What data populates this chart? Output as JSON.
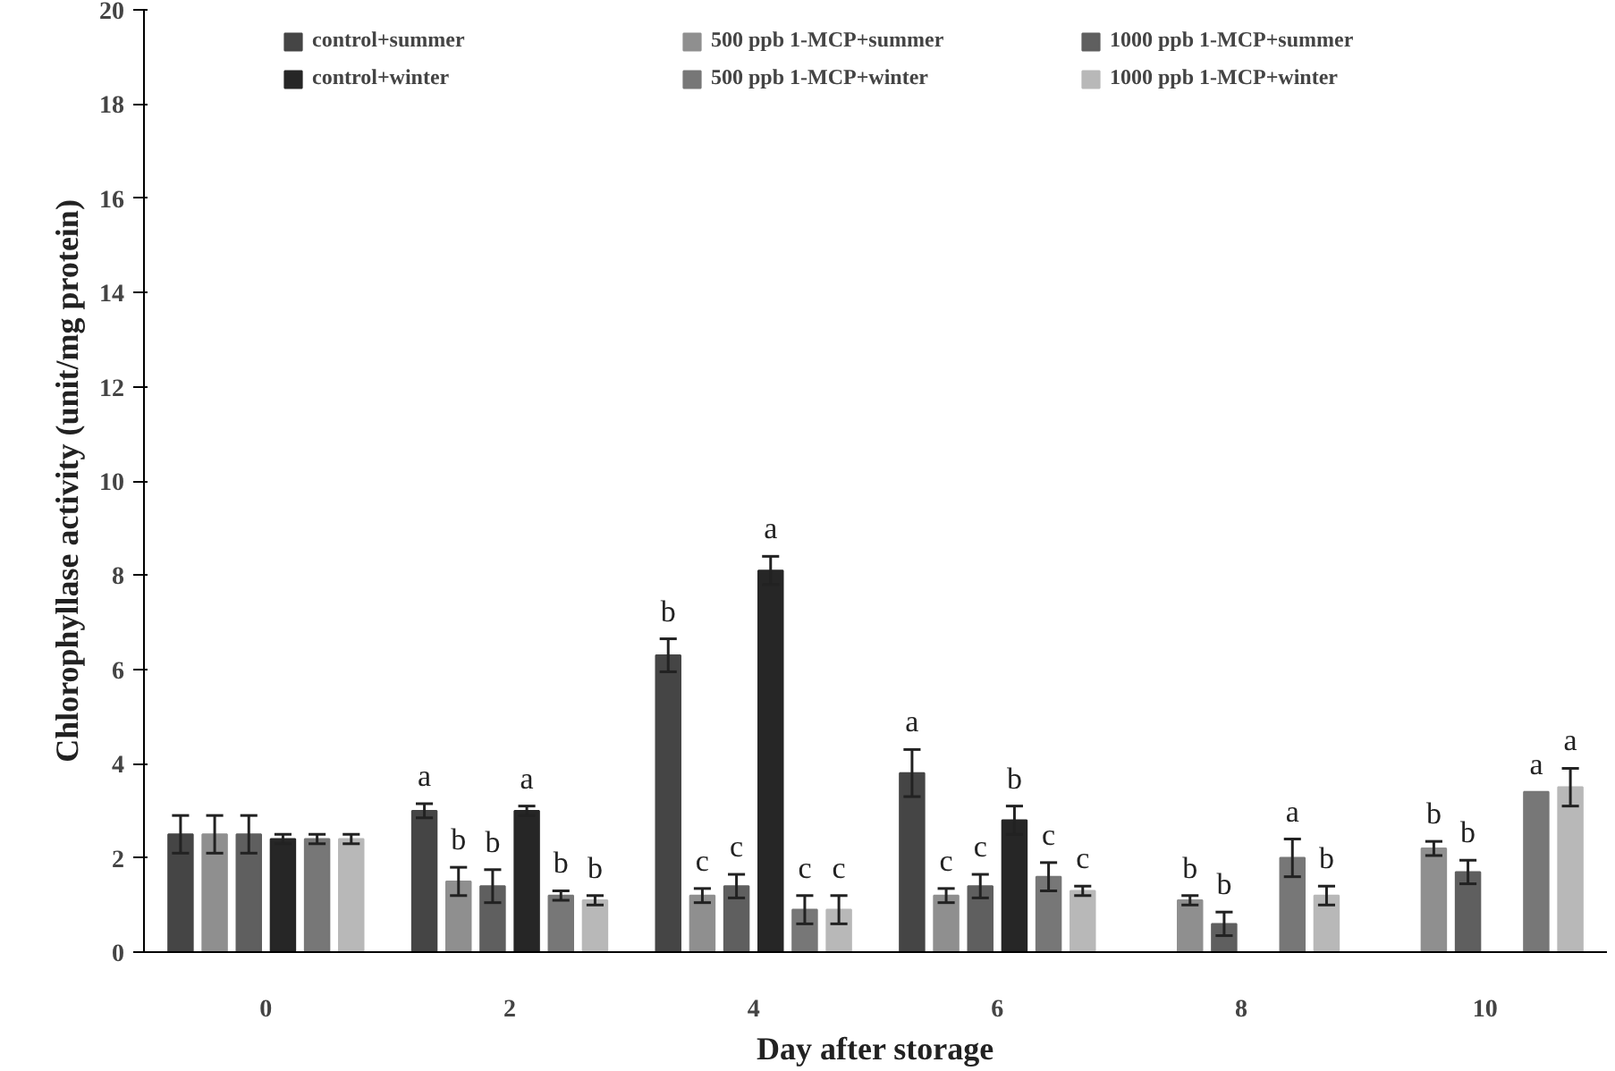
{
  "chart_data": {
    "type": "bar",
    "xlabel": "Day after storage",
    "ylabel": "Chlorophyllase activity (unit/mg protein)",
    "categories": [
      "0",
      "2",
      "4",
      "6",
      "8",
      "10"
    ],
    "ylim": [
      0,
      20
    ],
    "yticks": [
      0,
      2,
      4,
      6,
      8,
      10,
      12,
      14,
      16,
      18,
      20
    ],
    "grid": false,
    "legend": "top",
    "series": [
      {
        "name": "control+summer",
        "color": "#454545",
        "values": [
          2.5,
          3.0,
          6.3,
          3.8,
          null,
          null
        ],
        "errors": [
          0.4,
          0.15,
          0.35,
          0.5,
          null,
          null
        ],
        "value_labels": [
          null,
          "a",
          "b",
          "a",
          null,
          null
        ]
      },
      {
        "name": "500 ppb 1-MCP+summer",
        "color": "#8f8f8f",
        "values": [
          2.5,
          1.5,
          1.2,
          1.2,
          1.1,
          2.2
        ],
        "errors": [
          0.4,
          0.3,
          0.15,
          0.15,
          0.1,
          0.15
        ],
        "value_labels": [
          null,
          "b",
          "c",
          "c",
          "b",
          "b"
        ]
      },
      {
        "name": "1000 ppb 1-MCP+summer",
        "color": "#5f5f5f",
        "values": [
          2.5,
          1.4,
          1.4,
          1.4,
          0.6,
          1.7
        ],
        "errors": [
          0.4,
          0.35,
          0.25,
          0.25,
          0.25,
          0.25
        ],
        "value_labels": [
          null,
          "b",
          "c",
          "c",
          "b",
          "b"
        ]
      },
      {
        "name": "control+winter",
        "color": "#262626",
        "values": [
          2.4,
          3.0,
          8.1,
          2.8,
          null,
          null
        ],
        "errors": [
          0.1,
          0.1,
          0.3,
          0.3,
          null,
          null
        ],
        "value_labels": [
          null,
          "a",
          "a",
          "b",
          null,
          null
        ]
      },
      {
        "name": "500 ppb 1-MCP+winter",
        "color": "#777777",
        "values": [
          2.4,
          1.2,
          0.9,
          1.6,
          2.0,
          3.4
        ],
        "errors": [
          0.1,
          0.1,
          0.3,
          0.3,
          0.4,
          null
        ],
        "value_labels": [
          null,
          "b",
          "c",
          "c",
          "a",
          "a"
        ]
      },
      {
        "name": "1000 ppb 1-MCP+winter",
        "color": "#b8b8b8",
        "values": [
          2.4,
          1.1,
          0.9,
          1.3,
          1.2,
          3.5
        ],
        "errors": [
          0.1,
          0.1,
          0.3,
          0.1,
          0.2,
          0.4
        ],
        "value_labels": [
          null,
          "b",
          "c",
          "c",
          "b",
          "a"
        ]
      }
    ]
  }
}
